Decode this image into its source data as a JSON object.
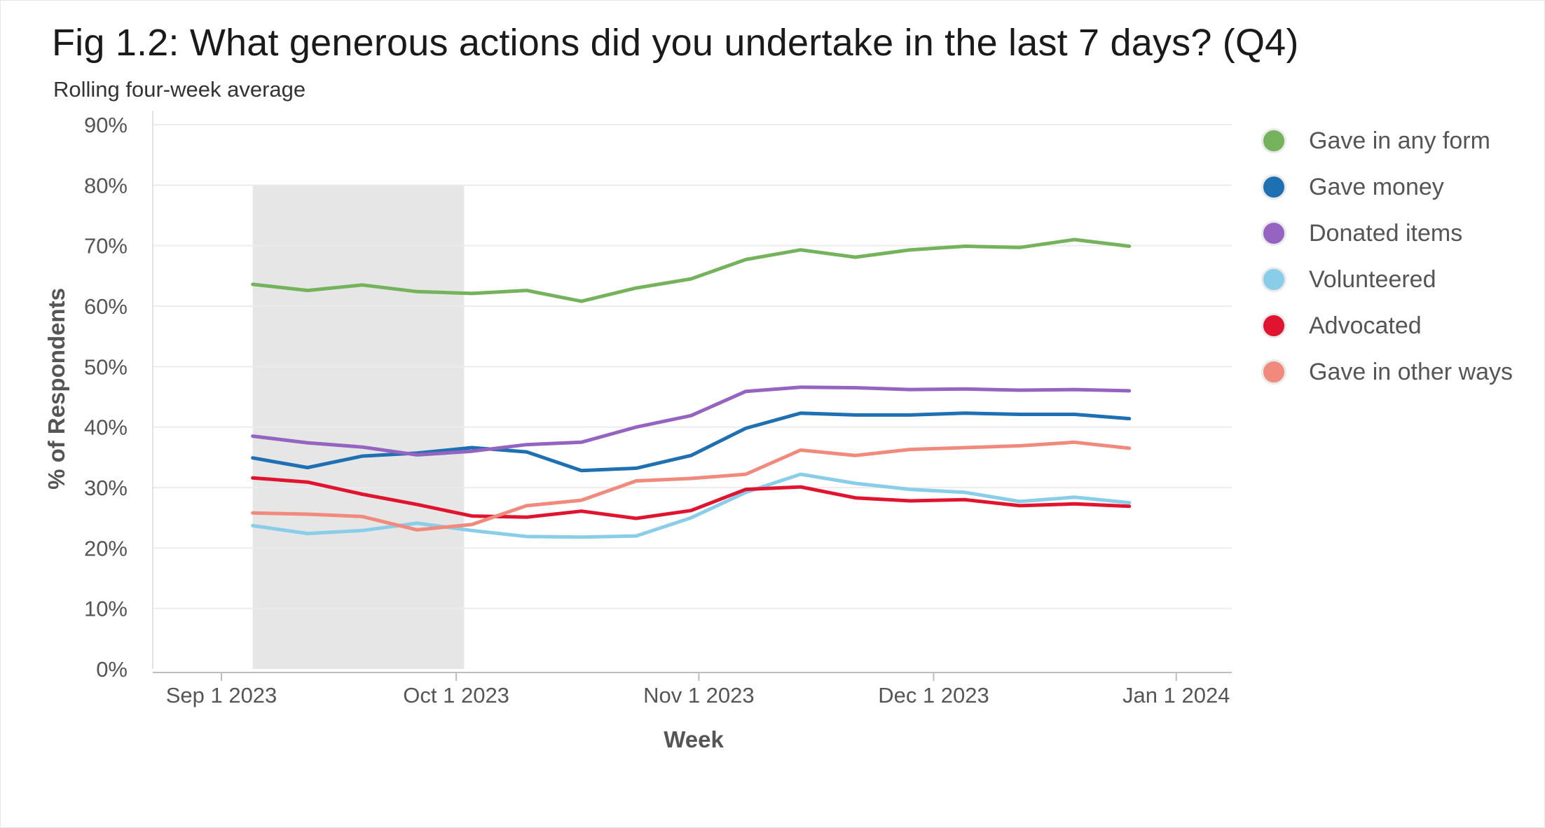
{
  "header": {
    "title": "Fig 1.2: What generous actions did you undertake in the last 7 days? (Q4)",
    "subtitle": "Rolling four-week average"
  },
  "chart_data": {
    "type": "line",
    "title": "Fig 1.2: What generous actions did you undertake in the last 7 days? (Q4)",
    "subtitle": "Rolling four-week average",
    "xlabel": "Week",
    "ylabel": "% of Respondents",
    "ylim": [
      0,
      90
    ],
    "yticks": [
      0,
      10,
      20,
      30,
      40,
      50,
      60,
      70,
      80,
      90
    ],
    "ytick_labels": [
      "0%",
      "10%",
      "20%",
      "30%",
      "40%",
      "50%",
      "60%",
      "70%",
      "80%",
      "90%"
    ],
    "xtick_labels": [
      "Sep 1 2023",
      "Oct 1 2023",
      "Nov 1 2023",
      "Dec 1 2023",
      "Jan 1 2024"
    ],
    "xtick_days": [
      0,
      30,
      61,
      91,
      122
    ],
    "x_start": "2023-09-01",
    "x_days": [
      4,
      11,
      18,
      25,
      32,
      39,
      46,
      53,
      60,
      67,
      74,
      81,
      88,
      95,
      102,
      109,
      116
    ],
    "shaded_region": {
      "from_day": 4,
      "to_day": 31,
      "y_top": 80
    },
    "grid": true,
    "legend_position": "right",
    "series": [
      {
        "name": "Gave in any form",
        "color": "#74b35b",
        "values": [
          63.6,
          62.6,
          63.5,
          62.4,
          62.1,
          62.6,
          60.8,
          63.0,
          64.5,
          67.7,
          69.3,
          68.1,
          69.3,
          69.9,
          69.7,
          71.0,
          69.9
        ]
      },
      {
        "name": "Gave money",
        "color": "#1f6fb3",
        "values": [
          34.9,
          33.3,
          35.2,
          35.7,
          36.6,
          35.9,
          32.8,
          33.2,
          35.3,
          39.8,
          42.3,
          42.0,
          42.0,
          42.3,
          42.1,
          42.1,
          41.4
        ]
      },
      {
        "name": "Donated items",
        "color": "#9464c0",
        "values": [
          38.5,
          37.4,
          36.7,
          35.4,
          36.0,
          37.1,
          37.5,
          40.0,
          41.9,
          45.9,
          46.6,
          46.5,
          46.2,
          46.3,
          46.1,
          46.2,
          46.0
        ]
      },
      {
        "name": "Volunteered",
        "color": "#89cde8",
        "values": [
          23.7,
          22.4,
          22.9,
          24.1,
          22.9,
          21.9,
          21.8,
          22.0,
          25.0,
          29.2,
          32.2,
          30.7,
          29.7,
          29.2,
          27.7,
          28.4,
          27.5
        ]
      },
      {
        "name": "Advocated",
        "color": "#e0142f",
        "values": [
          31.6,
          30.9,
          28.9,
          27.2,
          25.3,
          25.1,
          26.1,
          24.9,
          26.2,
          29.7,
          30.1,
          28.3,
          27.8,
          28.0,
          27.0,
          27.3,
          26.9
        ]
      },
      {
        "name": "Gave in other ways",
        "color": "#f18a7c",
        "values": [
          25.8,
          25.6,
          25.2,
          23.0,
          23.9,
          27.0,
          27.9,
          31.1,
          31.5,
          32.2,
          36.2,
          35.3,
          36.3,
          36.6,
          36.9,
          37.5,
          36.5
        ]
      }
    ]
  }
}
